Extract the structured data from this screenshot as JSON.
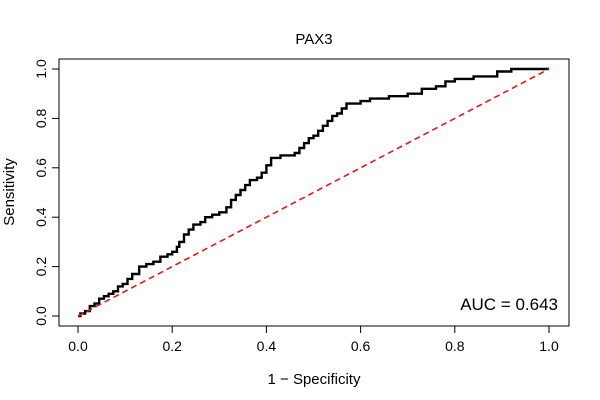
{
  "chart_data": {
    "type": "line",
    "title": "PAX3",
    "xlabel": "1 − Specificity",
    "ylabel": "Sensitivity",
    "xlim": [
      0,
      1
    ],
    "ylim": [
      0,
      1
    ],
    "x_ticks": [
      0,
      0.2,
      0.4,
      0.6,
      0.8,
      1
    ],
    "y_ticks": [
      0,
      0.2,
      0.4,
      0.6,
      0.8,
      1
    ],
    "x_tick_labels": [
      "0.0",
      "0.2",
      "0.4",
      "0.6",
      "0.8",
      "1.0"
    ],
    "y_tick_labels": [
      "0.0",
      "0.2",
      "0.4",
      "0.6",
      "0.8",
      "1.0"
    ],
    "grid": false,
    "annotation": "AUC = 0.643",
    "series": [
      {
        "color": "#000000",
        "style": "step",
        "x": [
          0,
          0.005,
          0.015,
          0.025,
          0.035,
          0.045,
          0.055,
          0.065,
          0.075,
          0.085,
          0.095,
          0.105,
          0.115,
          0.13,
          0.145,
          0.16,
          0.175,
          0.19,
          0.2,
          0.21,
          0.215,
          0.225,
          0.235,
          0.245,
          0.26,
          0.27,
          0.285,
          0.3,
          0.315,
          0.325,
          0.335,
          0.345,
          0.355,
          0.365,
          0.38,
          0.39,
          0.4,
          0.41,
          0.43,
          0.445,
          0.46,
          0.47,
          0.48,
          0.49,
          0.5,
          0.51,
          0.52,
          0.53,
          0.54,
          0.55,
          0.56,
          0.57,
          0.585,
          0.6,
          0.62,
          0.64,
          0.66,
          0.7,
          0.73,
          0.76,
          0.78,
          0.8,
          0.84,
          0.87,
          0.89,
          0.92,
          1.0
        ],
        "y": [
          0,
          0.01,
          0.02,
          0.04,
          0.05,
          0.07,
          0.08,
          0.09,
          0.1,
          0.12,
          0.13,
          0.15,
          0.17,
          0.2,
          0.21,
          0.22,
          0.24,
          0.25,
          0.26,
          0.28,
          0.3,
          0.33,
          0.35,
          0.37,
          0.38,
          0.4,
          0.41,
          0.42,
          0.44,
          0.47,
          0.49,
          0.51,
          0.53,
          0.55,
          0.56,
          0.58,
          0.61,
          0.64,
          0.65,
          0.65,
          0.66,
          0.68,
          0.7,
          0.72,
          0.73,
          0.75,
          0.77,
          0.79,
          0.81,
          0.82,
          0.84,
          0.86,
          0.86,
          0.87,
          0.88,
          0.88,
          0.89,
          0.9,
          0.92,
          0.93,
          0.95,
          0.96,
          0.97,
          0.97,
          0.99,
          1.0,
          1.0
        ]
      },
      {
        "color": "#e31a1c",
        "style": "dashed",
        "x": [
          0,
          1
        ],
        "y": [
          0,
          1
        ]
      }
    ]
  }
}
